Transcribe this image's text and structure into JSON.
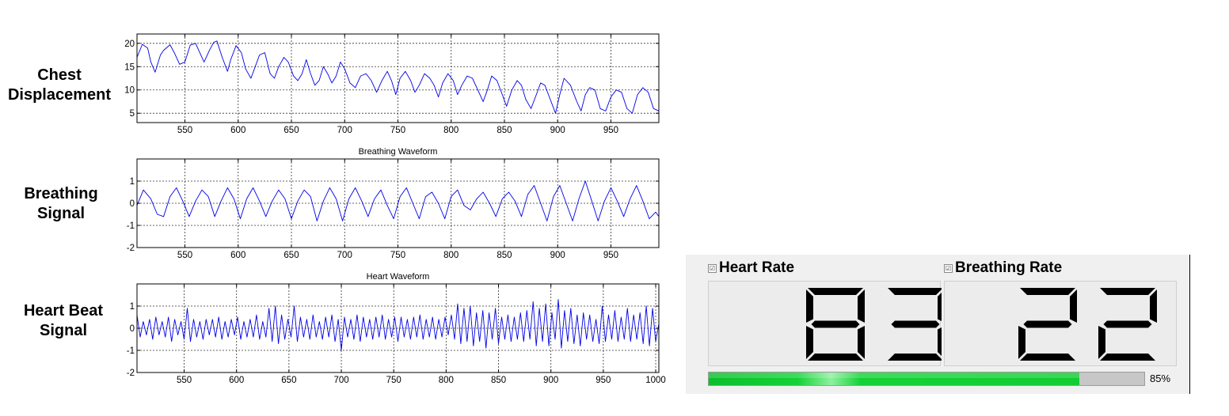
{
  "row_labels": {
    "chest": [
      "Chest",
      "Displacement"
    ],
    "breathing": [
      "Breathing",
      "Signal"
    ],
    "heart": [
      "Heart Beat",
      "Signal"
    ]
  },
  "colors": {
    "signal_line": "#0000e6",
    "progress_green": "#12cd33"
  },
  "chart_data": [
    {
      "type": "line",
      "title": "",
      "xlabel": "",
      "ylabel": "",
      "xlim": [
        505,
        995
      ],
      "ylim": [
        3,
        22
      ],
      "xticks": [
        550,
        600,
        650,
        700,
        750,
        800,
        850,
        900,
        950
      ],
      "yticks": [
        5,
        10,
        15,
        20
      ],
      "grid": true,
      "series": [
        {
          "x": [
            505,
            510,
            515,
            518,
            522,
            527,
            530,
            536,
            540,
            545,
            550,
            555,
            560,
            564,
            568,
            573,
            577,
            580,
            585,
            590,
            593,
            598,
            603,
            607,
            612,
            616,
            620,
            625,
            630,
            634,
            638,
            643,
            647,
            652,
            656,
            660,
            664,
            668,
            672,
            676,
            680,
            684,
            688,
            692,
            696,
            700,
            705,
            710,
            715,
            720,
            725,
            730,
            735,
            740,
            744,
            748,
            752,
            757,
            762,
            766,
            770,
            775,
            780,
            784,
            788,
            792,
            797,
            802,
            806,
            810,
            815,
            820,
            825,
            830,
            834,
            838,
            843,
            848,
            852,
            857,
            862,
            866,
            870,
            875,
            880,
            884,
            888,
            893,
            898,
            902,
            906,
            912,
            918,
            922,
            926,
            930,
            935,
            940,
            945,
            950,
            955,
            960,
            965,
            970,
            975,
            980,
            985,
            990,
            995
          ],
          "values": [
            17,
            19.8,
            19,
            16,
            13.8,
            17.5,
            18.5,
            19.7,
            18,
            15.5,
            16,
            19.6,
            20,
            18,
            16,
            18.5,
            20.2,
            20.5,
            17,
            14,
            16.5,
            19.5,
            18,
            14.5,
            12.5,
            15,
            17.5,
            18,
            13.5,
            12.5,
            15,
            17,
            16,
            13,
            12,
            13.5,
            16.5,
            13.5,
            11,
            12,
            15,
            13.5,
            11.5,
            13,
            16,
            14.5,
            11.5,
            10.5,
            13,
            13.5,
            12,
            9.5,
            12,
            14,
            12,
            9,
            12.5,
            14,
            12,
            9.5,
            11,
            13.5,
            12.5,
            11,
            8.5,
            11.5,
            13.5,
            12,
            9,
            11,
            13,
            12.5,
            10,
            7.5,
            10,
            13,
            12,
            9,
            6.5,
            10,
            12,
            11,
            8,
            6,
            9,
            11.5,
            11,
            8,
            5,
            9,
            12.5,
            11,
            7.5,
            5.5,
            9,
            10.5,
            10,
            6,
            5.5,
            8.5,
            10,
            9.5,
            6,
            5,
            9,
            10.5,
            9.5,
            6,
            5.5
          ]
        }
      ]
    },
    {
      "type": "line",
      "title": "Breathing Waveform",
      "xlabel": "",
      "ylabel": "",
      "xlim": [
        505,
        995
      ],
      "ylim": [
        -2,
        2
      ],
      "xticks": [
        550,
        600,
        650,
        700,
        750,
        800,
        850,
        900,
        950
      ],
      "yticks": [
        -2,
        -1,
        0,
        1
      ],
      "grid": true,
      "series": [
        {
          "x": [
            505,
            511,
            518,
            524,
            530,
            536,
            542,
            548,
            554,
            560,
            566,
            572,
            578,
            584,
            590,
            596,
            602,
            608,
            614,
            620,
            626,
            632,
            638,
            644,
            650,
            656,
            662,
            668,
            674,
            680,
            686,
            692,
            698,
            704,
            710,
            716,
            722,
            728,
            734,
            740,
            746,
            752,
            758,
            764,
            770,
            776,
            782,
            788,
            794,
            800,
            806,
            812,
            818,
            824,
            830,
            836,
            842,
            848,
            854,
            860,
            866,
            872,
            878,
            884,
            890,
            896,
            902,
            908,
            914,
            920,
            926,
            932,
            938,
            944,
            950,
            956,
            962,
            968,
            974,
            980,
            986,
            992,
            995
          ],
          "values": [
            -0.1,
            0.6,
            0.2,
            -0.5,
            -0.6,
            0.3,
            0.7,
            0.1,
            -0.6,
            0.1,
            0.6,
            0.3,
            -0.6,
            0.1,
            0.7,
            0.2,
            -0.7,
            0.2,
            0.7,
            0.1,
            -0.6,
            0.1,
            0.6,
            0.2,
            -0.7,
            0.1,
            0.6,
            0.3,
            -0.8,
            0.1,
            0.7,
            0.2,
            -0.8,
            0.2,
            0.7,
            0.1,
            -0.6,
            0.2,
            0.6,
            -0.1,
            -0.7,
            0.3,
            0.7,
            0.0,
            -0.7,
            0.3,
            0.5,
            0.0,
            -0.7,
            0.3,
            0.6,
            -0.1,
            -0.3,
            0.2,
            0.5,
            0.0,
            -0.6,
            0.2,
            0.5,
            0.1,
            -0.6,
            0.4,
            0.8,
            0.0,
            -0.8,
            0.3,
            0.8,
            0.0,
            -0.8,
            0.2,
            1.0,
            0.1,
            -0.8,
            0.1,
            0.7,
            0.1,
            -0.6,
            0.2,
            0.8,
            0.1,
            -0.7,
            -0.4,
            -0.6
          ]
        }
      ]
    },
    {
      "type": "line",
      "title": "Heart Waveform",
      "xlabel": "",
      "ylabel": "",
      "xlim": [
        505,
        1003
      ],
      "ylim": [
        -2,
        2
      ],
      "xticks": [
        550,
        600,
        650,
        700,
        750,
        800,
        850,
        900,
        950,
        1000
      ],
      "yticks": [
        -2,
        -1,
        0,
        1
      ],
      "grid": true,
      "series": [
        {
          "x": [
            505,
            508,
            511,
            514,
            517,
            520,
            523,
            526,
            529,
            532,
            535,
            538,
            541,
            544,
            547,
            550,
            553,
            556,
            559,
            562,
            565,
            568,
            571,
            574,
            577,
            580,
            583,
            586,
            589,
            592,
            595,
            598,
            601,
            604,
            607,
            610,
            613,
            616,
            619,
            622,
            625,
            628,
            631,
            634,
            637,
            640,
            643,
            646,
            649,
            652,
            655,
            658,
            661,
            664,
            667,
            670,
            673,
            676,
            679,
            682,
            685,
            688,
            691,
            694,
            697,
            700,
            703,
            706,
            709,
            712,
            715,
            718,
            721,
            724,
            727,
            730,
            733,
            736,
            739,
            742,
            745,
            748,
            751,
            754,
            757,
            760,
            763,
            766,
            769,
            772,
            775,
            778,
            781,
            784,
            787,
            790,
            793,
            796,
            799,
            802,
            805,
            808,
            811,
            814,
            817,
            820,
            823,
            826,
            829,
            832,
            835,
            838,
            841,
            844,
            847,
            850,
            853,
            856,
            859,
            862,
            865,
            868,
            871,
            874,
            877,
            880,
            883,
            886,
            889,
            892,
            895,
            898,
            901,
            904,
            907,
            910,
            913,
            916,
            919,
            922,
            925,
            928,
            931,
            934,
            937,
            940,
            943,
            946,
            949,
            952,
            955,
            958,
            961,
            964,
            967,
            970,
            973,
            976,
            979,
            982,
            985,
            988,
            991,
            994,
            997,
            1000,
            1003
          ],
          "values": [
            0.6,
            -0.4,
            0.3,
            -0.3,
            0.4,
            -0.5,
            0.5,
            -0.3,
            0.3,
            -0.4,
            0.5,
            -0.6,
            0.4,
            -0.3,
            0.3,
            -0.5,
            0.9,
            -0.6,
            0.4,
            -0.4,
            0.3,
            -0.5,
            0.4,
            -0.3,
            0.4,
            -0.4,
            0.5,
            -0.5,
            0.3,
            -0.4,
            0.4,
            -0.3,
            0.5,
            -0.5,
            0.3,
            -0.4,
            0.4,
            -0.4,
            0.6,
            -0.5,
            0.3,
            -0.4,
            0.9,
            -0.6,
            1.0,
            -0.7,
            0.6,
            -0.5,
            0.4,
            -0.4,
            1.0,
            -0.6,
            0.5,
            -0.4,
            0.4,
            -0.5,
            0.6,
            -0.4,
            0.3,
            -0.5,
            0.5,
            -0.4,
            0.6,
            -0.6,
            0.4,
            -1.0,
            0.5,
            -0.4,
            0.4,
            -0.5,
            0.6,
            -0.6,
            0.5,
            -0.4,
            0.4,
            -0.5,
            0.5,
            -0.4,
            0.6,
            -0.5,
            0.4,
            -0.4,
            0.5,
            -0.6,
            0.5,
            -0.4,
            0.4,
            -0.5,
            0.5,
            -0.4,
            0.6,
            -0.5,
            0.4,
            -0.4,
            0.5,
            -0.5,
            0.4,
            -0.4,
            0.5,
            -0.3,
            0.6,
            -0.5,
            1.1,
            -0.7,
            0.9,
            -0.6,
            1.0,
            -0.8,
            0.7,
            -0.6,
            0.8,
            -0.9,
            0.7,
            -0.5,
            0.9,
            -0.7,
            0.5,
            -0.5,
            0.6,
            -0.6,
            0.5,
            -0.5,
            0.7,
            -0.6,
            0.8,
            -0.5,
            1.2,
            -0.8,
            0.9,
            -0.6,
            1.1,
            -0.8,
            0.7,
            -0.5,
            1.3,
            -0.9,
            0.8,
            -0.6,
            0.9,
            -0.7,
            0.6,
            -0.8,
            0.7,
            -0.5,
            0.6,
            -0.6,
            0.4,
            -0.7,
            1.0,
            -0.6,
            0.6,
            -0.5,
            0.8,
            -0.6,
            0.5,
            -0.5,
            0.9,
            -0.6,
            0.6,
            -0.5,
            0.7,
            -0.7,
            1.0,
            -0.8,
            0.9,
            -0.6,
            0.2
          ]
        }
      ]
    }
  ],
  "vitals": {
    "heart_rate": {
      "label": "Heart Rate",
      "checkbox_mark": "☑",
      "value": "83"
    },
    "breathing_rate": {
      "label": "Breathing Rate",
      "checkbox_mark": "☑",
      "value": "22"
    }
  },
  "progress": {
    "fraction": 0.85,
    "text": "85%"
  }
}
